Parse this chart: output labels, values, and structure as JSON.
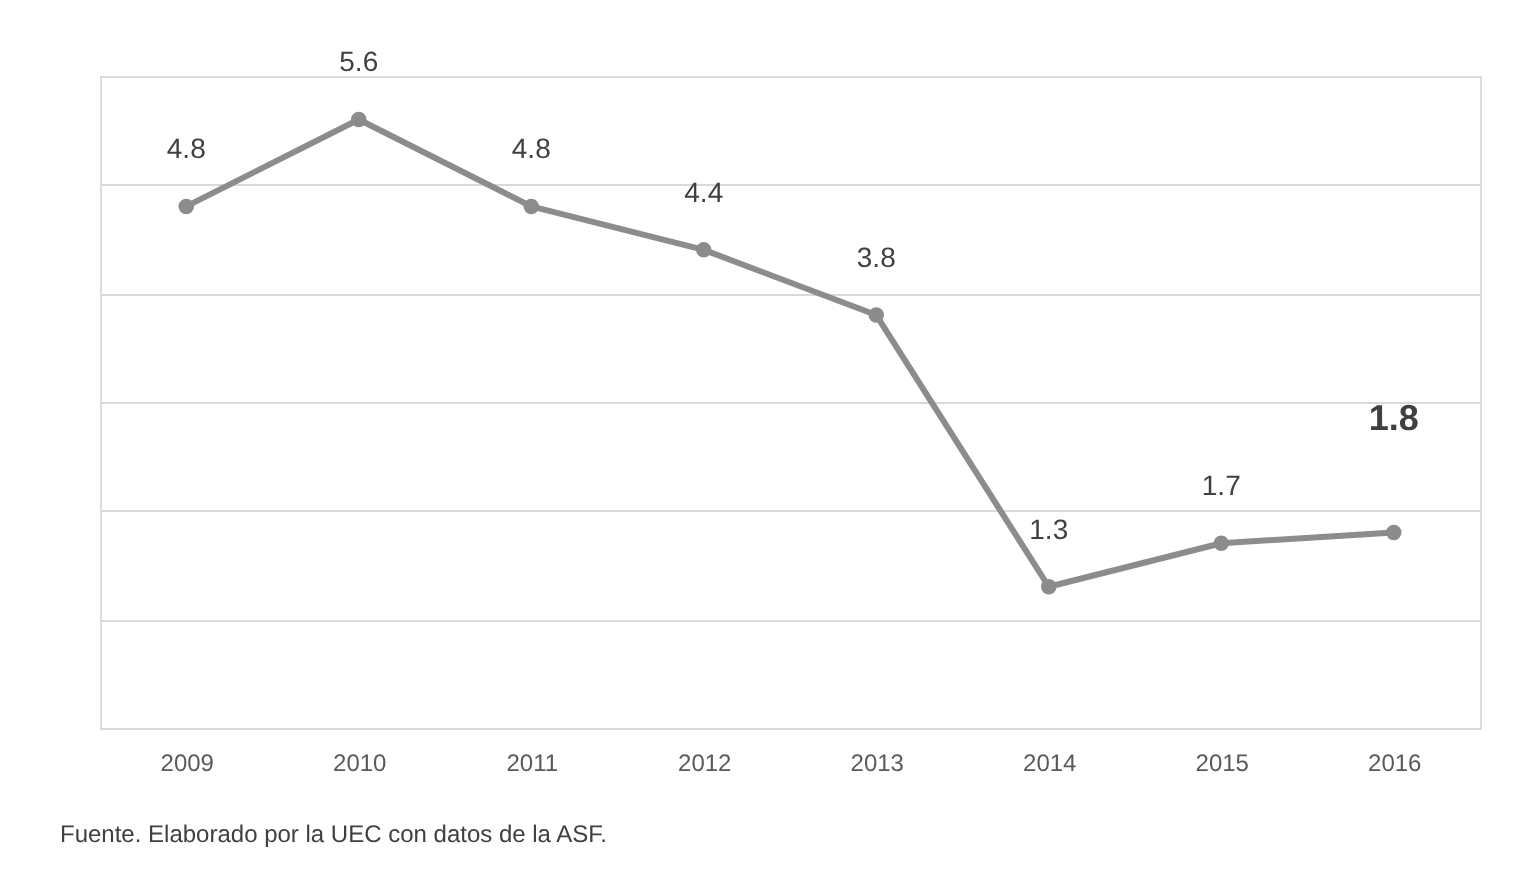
{
  "chart_data": {
    "type": "line",
    "categories": [
      "2009",
      "2010",
      "2011",
      "2012",
      "2013",
      "2014",
      "2015",
      "2016"
    ],
    "series": [
      {
        "color": "#8c8c8c",
        "values": [
          4.8,
          5.6,
          4.8,
          4.4,
          3.8,
          1.3,
          1.7,
          1.8
        ]
      }
    ],
    "ylim": [
      0,
      6
    ],
    "yticks": [
      {
        "value": 0,
        "label": null
      },
      {
        "value": 1,
        "label": null
      },
      {
        "value": 2,
        "label": null
      },
      {
        "value": 3,
        "label": null
      },
      {
        "value": 4,
        "label": null
      },
      {
        "value": 5,
        "label": null
      },
      {
        "value": 6,
        "label": null
      }
    ],
    "tick_labels": "x",
    "grid": "y",
    "marker": "circle",
    "line_style": "solid",
    "data_labels": true,
    "annotations": [
      "Fuente. Elaborado por la UEC con datos de la ASF."
    ]
  }
}
